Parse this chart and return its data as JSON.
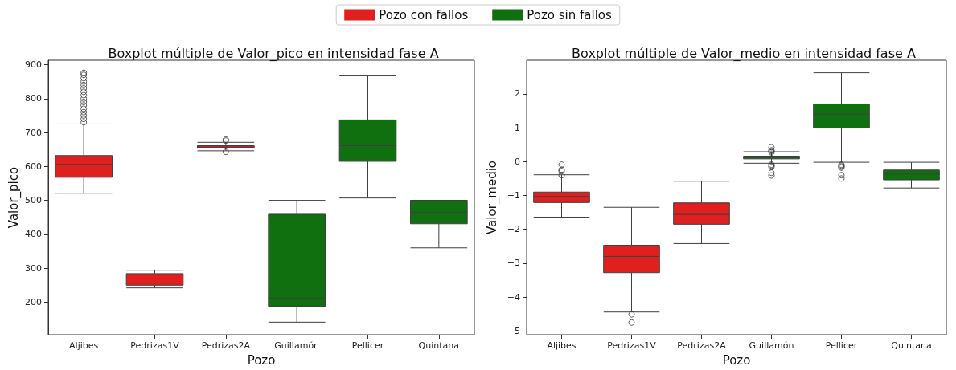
{
  "chart_data": [
    {
      "type": "box",
      "title": "Boxplot múltiple de Valor_pico en intensidad fase A",
      "xlabel": "Pozo",
      "ylabel": "Valor_pico",
      "categories": [
        "Aljibes",
        "Pedrizas1V",
        "Pedrizas2A",
        "Guillamón",
        "Pellicer",
        "Quintana"
      ],
      "ylim": [
        104,
        913
      ],
      "yticks": [
        200,
        300,
        400,
        500,
        600,
        700,
        800,
        900
      ],
      "legend": "top",
      "grid": false,
      "series": [
        {
          "name": "Pozo con fallos",
          "color": "#e01f1f",
          "boxes": [
            {
              "low": 521,
              "q1": 568,
              "median": 606,
              "q3": 632,
              "high": 725,
              "outliers": [
                730,
                740,
                750,
                760,
                770,
                780,
                790,
                800,
                810,
                820,
                830,
                840,
                850,
                860,
                870,
                876
              ]
            },
            {
              "low": 242,
              "q1": 250,
              "median": 282,
              "q3": 284,
              "high": 294
            },
            {
              "low": 646,
              "q1": 654,
              "median": 657,
              "q3": 661,
              "high": 671,
              "outliers": [
                643,
                676,
                679
              ]
            },
            null,
            null,
            null
          ]
        },
        {
          "name": "Pozo sin fallos",
          "color": "#107010",
          "boxes": [
            null,
            null,
            null,
            {
              "low": 141,
              "q1": 188,
              "median": 212,
              "q3": 459,
              "high": 500
            },
            {
              "low": 507,
              "q1": 615,
              "median": 661,
              "q3": 737,
              "high": 867
            },
            {
              "low": 360,
              "q1": 431,
              "median": 465,
              "q3": 500,
              "high": 500
            }
          ]
        }
      ]
    },
    {
      "type": "box",
      "title": "Boxplot múltiple de Valor_medio en intensidad fase A",
      "xlabel": "Pozo",
      "ylabel": "Valor_medio",
      "categories": [
        "Aljibes",
        "Pedrizas1V",
        "Pedrizas2A",
        "Guillamón",
        "Pellicer",
        "Quintana"
      ],
      "ylim": [
        -5.11,
        2.99
      ],
      "yticks": [
        -5,
        -4,
        -3,
        -2,
        -1,
        0,
        1,
        2
      ],
      "grid": false,
      "series": [
        {
          "color": "#e01f1f",
          "boxes": [
            {
              "low": -1.64,
              "q1": -1.21,
              "median": -1.03,
              "q3": -0.9,
              "high": -0.39,
              "outliers": [
                -0.09,
                -0.24,
                -0.28,
                -0.4
              ]
            },
            {
              "low": -4.44,
              "q1": -3.28,
              "median": -2.8,
              "q3": -2.47,
              "high": -1.35,
              "outliers": [
                -4.51,
                -4.75
              ]
            },
            {
              "low": -2.42,
              "q1": -1.85,
              "median": -1.56,
              "q3": -1.22,
              "high": -0.58
            },
            null,
            null,
            null
          ]
        },
        {
          "color": "#107010",
          "boxes": [
            null,
            null,
            null,
            {
              "low": -0.05,
              "q1": 0.08,
              "median": 0.12,
              "q3": 0.16,
              "high": 0.29,
              "outliers": [
                0.42,
                0.33,
                0.3,
                0.27,
                -0.09,
                -0.12,
                -0.16,
                -0.33,
                -0.41
              ]
            },
            {
              "low": -0.02,
              "q1": 0.99,
              "median": 1.4,
              "q3": 1.7,
              "high": 2.62,
              "outliers": [
                -0.09,
                -0.12,
                -0.15,
                -0.18,
                -0.4,
                -0.5
              ]
            },
            {
              "low": -0.78,
              "q1": -0.54,
              "median": -0.37,
              "q3": -0.25,
              "high": -0.02
            }
          ]
        }
      ]
    }
  ]
}
